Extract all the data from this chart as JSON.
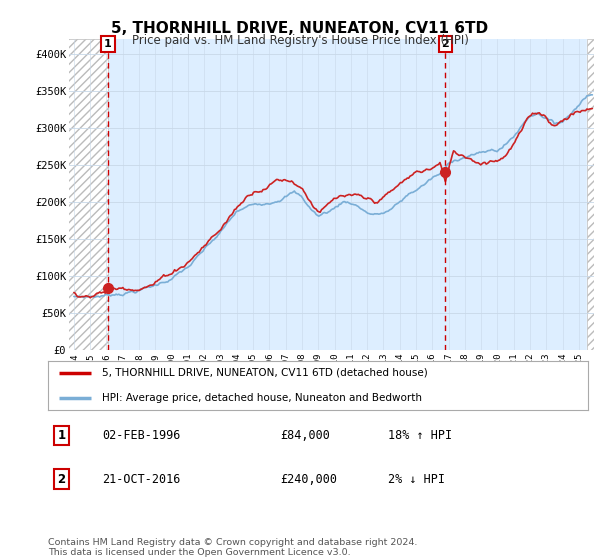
{
  "title": "5, THORNHILL DRIVE, NUNEATON, CV11 6TD",
  "subtitle": "Price paid vs. HM Land Registry's House Price Index (HPI)",
  "ylim": [
    0,
    420000
  ],
  "yticks": [
    0,
    50000,
    100000,
    150000,
    200000,
    250000,
    300000,
    350000,
    400000
  ],
  "ytick_labels": [
    "£0",
    "£50K",
    "£100K",
    "£150K",
    "£200K",
    "£250K",
    "£300K",
    "£350K",
    "£400K"
  ],
  "legend_line1": "5, THORNHILL DRIVE, NUNEATON, CV11 6TD (detached house)",
  "legend_line2": "HPI: Average price, detached house, Nuneaton and Bedworth",
  "legend_color1": "#cc0000",
  "legend_color2": "#7aaed6",
  "purchase1_label": "1",
  "purchase1_date": "02-FEB-1996",
  "purchase1_price": 84000,
  "purchase1_hpi": "18% ↑ HPI",
  "purchase1_x": 1996.09,
  "purchase2_label": "2",
  "purchase2_date": "21-OCT-2016",
  "purchase2_price": 240000,
  "purchase2_hpi": "2% ↓ HPI",
  "purchase2_x": 2016.8,
  "hpi_line_color": "#7aaed6",
  "price_line_color": "#cc2222",
  "dashed_line_color": "#cc0000",
  "grid_color": "#c8d8e8",
  "background_color": "#ddeeff",
  "hatch_color": "#bbbbbb",
  "footer": "Contains HM Land Registry data © Crown copyright and database right 2024.\nThis data is licensed under the Open Government Licence v3.0.",
  "xmin": 1994.0,
  "xmax": 2025.83,
  "hatch_left_end": 1996.09,
  "hatch_right_start": 2025.5
}
